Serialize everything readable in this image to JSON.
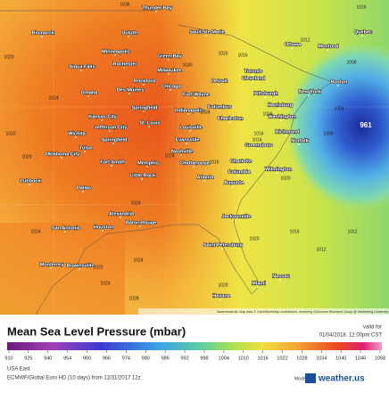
{
  "header": {
    "title": "Mean Sea Level Pressure (mbar)",
    "valid_label": "valid for",
    "valid_time": "01/04/2018, 12:00pm CST"
  },
  "map": {
    "low_center": "961",
    "attribution": "Kartenmaterial: Map data © OpenStreetMap contributors, rendering GIScience Research Group @ Heidelberg University",
    "cities": [
      "Bismarck",
      "Thunder Bay",
      "Duluth",
      "Sault Ste Marie",
      "Minneapolis",
      "Green Bay",
      "Rochester",
      "Sioux Falls",
      "Milwaukee",
      "Ottawa",
      "Montreal",
      "Quebec",
      "Toronto",
      "Detroit",
      "Rockford",
      "Chicago",
      "Omaha",
      "Des Moines",
      "Cleveland",
      "Fort Wayne",
      "Boston",
      "New York",
      "Pittsburgh",
      "Springfield",
      "Indianapolis",
      "Columbus",
      "Harrisburg",
      "Washington",
      "Kansas City",
      "St. Louis",
      "Jefferson City",
      "Charleston",
      "Louisville",
      "Richmond",
      "Wichita",
      "Springfield",
      "Evansville",
      "Norfolk",
      "Greensboro",
      "Nashville",
      "Oklahoma City",
      "Tulsa",
      "Fort Smith",
      "Memphis",
      "Chattanooga",
      "Charlotte",
      "Columbia",
      "Wilmington",
      "Little Rock",
      "Atlanta",
      "Augusta",
      "Lubbock",
      "Dallas",
      "Alexandria",
      "Baton Rouge",
      "Jacksonville",
      "San Antonio",
      "Houston",
      "Saint Petersburg",
      "Monterrey",
      "Brownsville",
      "Miami",
      "Nassau",
      "Havana"
    ],
    "isobar_labels": [
      1036,
      1016,
      1020,
      1024,
      1024,
      1020,
      1030,
      1024,
      1020,
      1012,
      1008,
      1004,
      1000,
      1016,
      1020,
      1024,
      1020,
      1016,
      1014,
      1016,
      1012,
      1024,
      1028,
      1024,
      1024,
      1020,
      1020,
      1016,
      1012,
      1016,
      1020
    ]
  },
  "legend": {
    "ticks": [
      910,
      925,
      940,
      954,
      960,
      966,
      974,
      980,
      986,
      992,
      998,
      1004,
      1010,
      1016,
      1022,
      1028,
      1034,
      1040,
      1046,
      1058
    ]
  },
  "footer": {
    "region": "USA East",
    "model_run": "ECMWF/Global Euro HD (10 days) from 12/31/2017 12z",
    "model_label": "Model:",
    "brand": "weather.us"
  }
}
